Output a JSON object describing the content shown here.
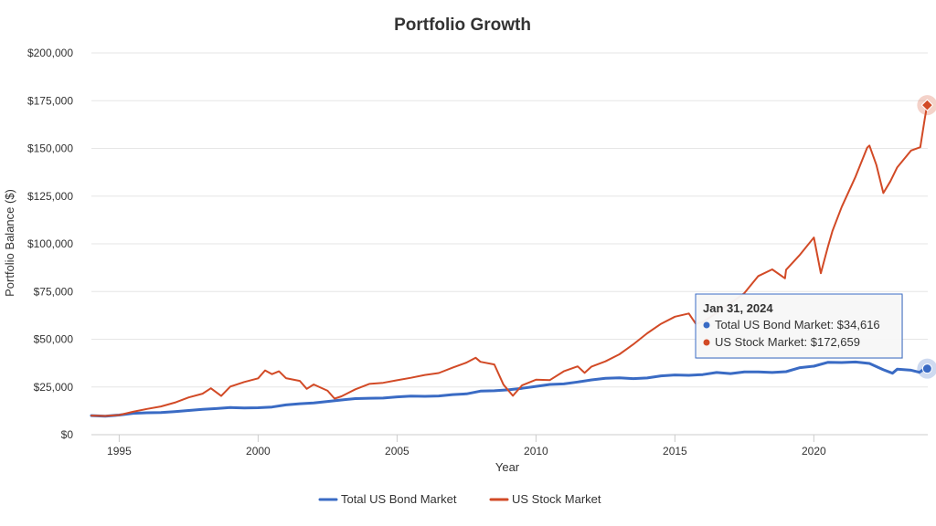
{
  "chart_data": {
    "type": "line",
    "title": "Portfolio Growth",
    "xlabel": "Year",
    "ylabel": "Portfolio Balance ($)",
    "xlim": [
      1994.0,
      2024.1
    ],
    "ylim": [
      0,
      200000
    ],
    "x_ticks": [
      1995,
      2000,
      2005,
      2010,
      2015,
      2020
    ],
    "y_ticks": [
      {
        "value": 0,
        "label": "$0"
      },
      {
        "value": 25000,
        "label": "$25,000"
      },
      {
        "value": 50000,
        "label": "$50,000"
      },
      {
        "value": 75000,
        "label": "$75,000"
      },
      {
        "value": 100000,
        "label": "$100,000"
      },
      {
        "value": 125000,
        "label": "$125,000"
      },
      {
        "value": 150000,
        "label": "$150,000"
      },
      {
        "value": 175000,
        "label": "$175,000"
      },
      {
        "value": 200000,
        "label": "$200,000"
      }
    ],
    "grid": true,
    "legend_position": "bottom-center",
    "series": [
      {
        "name": "Total US Bond Market",
        "color": "#3a6bc4",
        "points": [
          [
            1994.0,
            10000
          ],
          [
            1994.5,
            9700
          ],
          [
            1995.0,
            10300
          ],
          [
            1995.5,
            11200
          ],
          [
            1996.0,
            11500
          ],
          [
            1996.5,
            11600
          ],
          [
            1997.0,
            12100
          ],
          [
            1997.5,
            12700
          ],
          [
            1998.0,
            13300
          ],
          [
            1998.5,
            13700
          ],
          [
            1999.0,
            14200
          ],
          [
            1999.5,
            14000
          ],
          [
            2000.0,
            14100
          ],
          [
            2000.5,
            14500
          ],
          [
            2001.0,
            15600
          ],
          [
            2001.5,
            16200
          ],
          [
            2002.0,
            16600
          ],
          [
            2002.5,
            17400
          ],
          [
            2003.0,
            18200
          ],
          [
            2003.5,
            18900
          ],
          [
            2004.0,
            19100
          ],
          [
            2004.5,
            19200
          ],
          [
            2005.0,
            19800
          ],
          [
            2005.5,
            20200
          ],
          [
            2006.0,
            20100
          ],
          [
            2006.5,
            20300
          ],
          [
            2007.0,
            21000
          ],
          [
            2007.5,
            21400
          ],
          [
            2008.0,
            22800
          ],
          [
            2008.5,
            23000
          ],
          [
            2009.0,
            23500
          ],
          [
            2009.5,
            24300
          ],
          [
            2010.0,
            25300
          ],
          [
            2010.5,
            26300
          ],
          [
            2011.0,
            26600
          ],
          [
            2011.5,
            27600
          ],
          [
            2012.0,
            28700
          ],
          [
            2012.5,
            29500
          ],
          [
            2013.0,
            29800
          ],
          [
            2013.5,
            29400
          ],
          [
            2014.0,
            29700
          ],
          [
            2014.5,
            30800
          ],
          [
            2015.0,
            31300
          ],
          [
            2015.5,
            31100
          ],
          [
            2016.0,
            31500
          ],
          [
            2016.5,
            32600
          ],
          [
            2017.0,
            32000
          ],
          [
            2017.5,
            32900
          ],
          [
            2018.0,
            32900
          ],
          [
            2018.5,
            32600
          ],
          [
            2019.0,
            33000
          ],
          [
            2019.5,
            35100
          ],
          [
            2020.0,
            35900
          ],
          [
            2020.5,
            37900
          ],
          [
            2021.0,
            37800
          ],
          [
            2021.5,
            38100
          ],
          [
            2022.0,
            37300
          ],
          [
            2022.5,
            34000
          ],
          [
            2022.83,
            32200
          ],
          [
            2023.0,
            34300
          ],
          [
            2023.5,
            33800
          ],
          [
            2023.8,
            32700
          ],
          [
            2024.0,
            34800
          ],
          [
            2024.08,
            34616
          ]
        ]
      },
      {
        "name": "US Stock Market",
        "color": "#d24a26",
        "points": [
          [
            1994.0,
            10000
          ],
          [
            1994.5,
            9800
          ],
          [
            1995.0,
            10300
          ],
          [
            1995.5,
            12000
          ],
          [
            1996.0,
            13500
          ],
          [
            1996.5,
            14800
          ],
          [
            1997.0,
            16800
          ],
          [
            1997.5,
            19500
          ],
          [
            1998.0,
            21500
          ],
          [
            1998.3,
            24300
          ],
          [
            1998.67,
            20300
          ],
          [
            1999.0,
            25200
          ],
          [
            1999.5,
            27600
          ],
          [
            2000.0,
            29500
          ],
          [
            2000.25,
            33700
          ],
          [
            2000.5,
            31700
          ],
          [
            2000.75,
            33200
          ],
          [
            2001.0,
            29600
          ],
          [
            2001.5,
            28200
          ],
          [
            2001.75,
            24000
          ],
          [
            2002.0,
            26300
          ],
          [
            2002.5,
            23000
          ],
          [
            2002.75,
            18900
          ],
          [
            2003.0,
            20100
          ],
          [
            2003.5,
            23800
          ],
          [
            2004.0,
            26600
          ],
          [
            2004.5,
            27200
          ],
          [
            2005.0,
            28500
          ],
          [
            2005.5,
            29800
          ],
          [
            2006.0,
            31300
          ],
          [
            2006.5,
            32300
          ],
          [
            2007.0,
            35100
          ],
          [
            2007.5,
            37800
          ],
          [
            2007.83,
            40300
          ],
          [
            2008.0,
            38200
          ],
          [
            2008.5,
            36800
          ],
          [
            2008.83,
            26200
          ],
          [
            2009.17,
            20400
          ],
          [
            2009.5,
            25900
          ],
          [
            2010.0,
            28800
          ],
          [
            2010.5,
            28600
          ],
          [
            2011.0,
            33200
          ],
          [
            2011.5,
            35800
          ],
          [
            2011.75,
            32400
          ],
          [
            2012.0,
            35700
          ],
          [
            2012.5,
            38400
          ],
          [
            2013.0,
            42100
          ],
          [
            2013.5,
            47300
          ],
          [
            2014.0,
            53100
          ],
          [
            2014.5,
            58100
          ],
          [
            2015.0,
            61800
          ],
          [
            2015.5,
            63500
          ],
          [
            2015.75,
            58100
          ],
          [
            2016.0,
            59000
          ],
          [
            2016.5,
            63800
          ],
          [
            2017.0,
            68800
          ],
          [
            2017.5,
            74200
          ],
          [
            2018.0,
            83100
          ],
          [
            2018.5,
            86600
          ],
          [
            2018.96,
            81900
          ],
          [
            2019.0,
            86400
          ],
          [
            2019.5,
            94300
          ],
          [
            2020.0,
            103300
          ],
          [
            2020.25,
            84600
          ],
          [
            2020.5,
            98200
          ],
          [
            2020.67,
            106700
          ],
          [
            2021.0,
            119300
          ],
          [
            2021.5,
            135200
          ],
          [
            2021.92,
            150400
          ],
          [
            2022.0,
            151500
          ],
          [
            2022.25,
            141300
          ],
          [
            2022.5,
            126600
          ],
          [
            2022.75,
            132700
          ],
          [
            2023.0,
            140100
          ],
          [
            2023.5,
            148900
          ],
          [
            2023.83,
            150600
          ],
          [
            2024.0,
            166400
          ],
          [
            2024.08,
            172659
          ]
        ]
      }
    ],
    "tooltip": {
      "date": "Jan 31, 2024",
      "x": 2024.08,
      "entries": [
        {
          "label": "Total US Bond Market: $34,616",
          "color": "#3a6bc4"
        },
        {
          "label": "US Stock Market: $172,659",
          "color": "#d24a26"
        }
      ]
    }
  }
}
